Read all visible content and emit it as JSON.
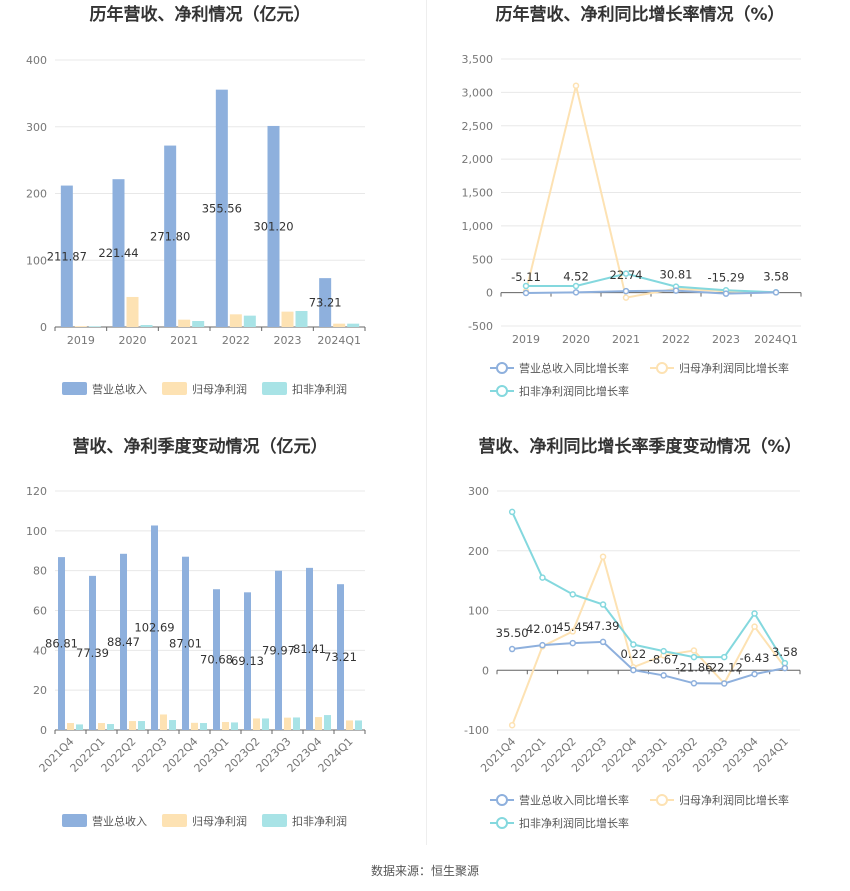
{
  "source_text": "数据来源：恒生聚源",
  "legends": {
    "revenue": "营业总收入",
    "net_profit": "归母净利润",
    "deducted_profit": "扣非净利润",
    "revenue_yoy": "营业总收入同比增长率",
    "net_profit_yoy": "归母净利润同比增长率",
    "deducted_profit_yoy": "扣非净利润同比增长率"
  },
  "colors": {
    "revenue": "#8eb0dd",
    "net_profit": "#fde2b3",
    "deducted_profit": "#a8e3e6",
    "revenue_line": "#8eb0dd",
    "net_profit_line": "#fde2b3",
    "deducted_profit_line": "#84d8de",
    "grid": "#e8e8e8",
    "axis": "#666666"
  },
  "chart_data": [
    {
      "type": "bar",
      "title": "历年营收、净利情况（亿元）",
      "categories": [
        "2019",
        "2020",
        "2021",
        "2022",
        "2023",
        "2024Q1"
      ],
      "ylim": [
        0,
        400
      ],
      "yticks": [
        "0",
        "100",
        "200",
        "300",
        "400"
      ],
      "series": [
        {
          "name": "营业总收入",
          "values": [
            211.87,
            221.44,
            271.8,
            355.56,
            301.2,
            73.21
          ]
        },
        {
          "name": "归母净利润",
          "values": [
            1.2,
            45.0,
            11.0,
            19.0,
            23.0,
            5.0
          ]
        },
        {
          "name": "扣非净利润",
          "values": [
            1.0,
            3.0,
            9.0,
            17.0,
            24.0,
            5.0
          ]
        }
      ],
      "data_labels": [
        "211.87",
        "221.44",
        "271.80",
        "355.56",
        "301.20",
        "73.21"
      ],
      "legend_position": "bottom"
    },
    {
      "type": "line",
      "title": "历年营收、净利同比增长率情况（%）",
      "categories": [
        "2019",
        "2020",
        "2021",
        "2022",
        "2023",
        "2024Q1"
      ],
      "ylim": [
        -500,
        3500
      ],
      "yticks": [
        "-500",
        "0",
        "500",
        "1,000",
        "1,500",
        "2,000",
        "2,500",
        "3,000",
        "3,500"
      ],
      "series": [
        {
          "name": "营业总收入同比增长率",
          "values": [
            -5.11,
            4.52,
            22.74,
            30.81,
            -15.29,
            3.58
          ]
        },
        {
          "name": "归母净利润同比增长率",
          "values": [
            20,
            3100,
            -75,
            60,
            20,
            3
          ]
        },
        {
          "name": "扣非净利润同比增长率",
          "values": [
            100,
            100,
            285,
            90,
            35,
            5
          ]
        }
      ],
      "data_labels": [
        "-5.11",
        "4.52",
        "22.74",
        "30.81",
        "-15.29",
        "3.58"
      ],
      "legend_position": "bottom"
    },
    {
      "type": "bar",
      "title": "营收、净利季度变动情况（亿元）",
      "categories": [
        "2021Q4",
        "2022Q1",
        "2022Q2",
        "2022Q3",
        "2022Q4",
        "2023Q1",
        "2023Q2",
        "2023Q3",
        "2023Q4",
        "2024Q1"
      ],
      "ylim": [
        0,
        120
      ],
      "yticks": [
        "0",
        "20",
        "40",
        "60",
        "80",
        "100",
        "120"
      ],
      "series": [
        {
          "name": "营业总收入",
          "values": [
            86.81,
            77.39,
            88.47,
            102.69,
            87.01,
            70.68,
            69.13,
            79.97,
            81.41,
            73.21
          ]
        },
        {
          "name": "归母净利润",
          "values": [
            3.5,
            3.5,
            4.5,
            7.8,
            3.6,
            4.0,
            5.8,
            6.2,
            6.5,
            4.8
          ]
        },
        {
          "name": "扣非净利润",
          "values": [
            2.8,
            3.0,
            4.5,
            5.0,
            3.5,
            3.8,
            5.8,
            6.3,
            7.5,
            4.8
          ]
        }
      ],
      "data_labels": [
        "86.81",
        "77.39",
        "88.47",
        "102.69",
        "87.01",
        "70.68",
        "69.13",
        "79.97",
        "81.41",
        "73.21"
      ],
      "legend_position": "bottom"
    },
    {
      "type": "line",
      "title": "营收、净利同比增长率季度变动情况（%）",
      "categories": [
        "2021Q4",
        "2022Q1",
        "2022Q2",
        "2022Q3",
        "2022Q4",
        "2023Q1",
        "2023Q2",
        "2023Q3",
        "2023Q4",
        "2024Q1"
      ],
      "ylim": [
        -100,
        300
      ],
      "yticks": [
        "-100",
        "0",
        "100",
        "200",
        "300"
      ],
      "series": [
        {
          "name": "营业总收入同比增长率",
          "values": [
            35.5,
            42.01,
            45.45,
            47.39,
            0.22,
            -8.67,
            -21.86,
            -22.12,
            -6.43,
            3.58
          ]
        },
        {
          "name": "归母净利润同比增长率",
          "values": [
            -92,
            40,
            65,
            190,
            5,
            25,
            33,
            -22,
            73,
            5
          ]
        },
        {
          "name": "扣非净利润同比增长率",
          "values": [
            265,
            155,
            127,
            110,
            43,
            32,
            22,
            22,
            95,
            12
          ]
        }
      ],
      "data_labels": [
        "35.50",
        "42.01",
        "45.45",
        "47.39",
        "0.22",
        "-8.67",
        "-21.86",
        "-22.12",
        "-6.43",
        "3.58"
      ],
      "legend_position": "bottom"
    }
  ]
}
